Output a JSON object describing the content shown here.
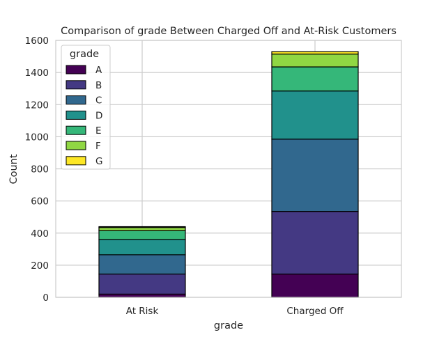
{
  "chart_data": {
    "type": "bar",
    "stacked": true,
    "title": "Comparison of grade Between Charged Off and At-Risk Customers",
    "xlabel": "grade",
    "ylabel": "Count",
    "categories": [
      "At Risk",
      "Charged Off"
    ],
    "ylim": [
      0,
      1600
    ],
    "yticks": [
      0,
      200,
      400,
      600,
      800,
      1000,
      1200,
      1400,
      1600
    ],
    "grid": true,
    "legend": {
      "title": "grade",
      "placement": "top-left"
    },
    "series": [
      {
        "name": "A",
        "color": "#440154",
        "values": [
          20,
          145
        ]
      },
      {
        "name": "B",
        "color": "#443983",
        "values": [
          125,
          390
        ]
      },
      {
        "name": "C",
        "color": "#31688e",
        "values": [
          120,
          450
        ]
      },
      {
        "name": "D",
        "color": "#21918c",
        "values": [
          95,
          300
        ]
      },
      {
        "name": "E",
        "color": "#35b779",
        "values": [
          55,
          150
        ]
      },
      {
        "name": "F",
        "color": "#90d743",
        "values": [
          20,
          80
        ]
      },
      {
        "name": "G",
        "color": "#fde725",
        "values": [
          5,
          15
        ]
      }
    ]
  }
}
